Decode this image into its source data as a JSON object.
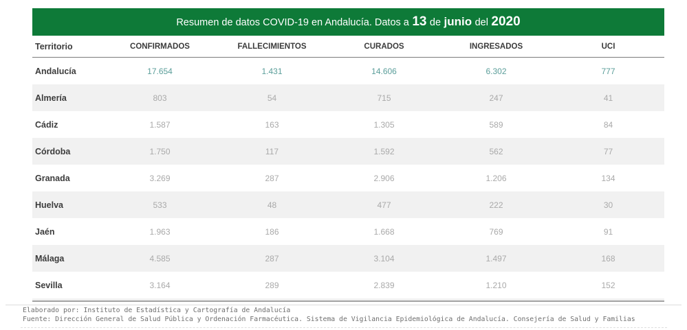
{
  "title": {
    "prefix": "Resumen de datos COVID-19 en Andalucía. Datos a",
    "day": "13",
    "de": "de",
    "month": "junio",
    "del": "del",
    "year": "2020"
  },
  "table": {
    "columns": [
      "Territorio",
      "CONFIRMADOS",
      "FALLECIMIENTOS",
      "CURADOS",
      "INGRESADOS",
      "UCI"
    ],
    "rows": [
      {
        "territorio": "Andalucía",
        "confirmados": "17.654",
        "fallecimientos": "1.431",
        "curados": "14.606",
        "ingresados": "6.302",
        "uci": "777",
        "highlight": true
      },
      {
        "territorio": "Almería",
        "confirmados": "803",
        "fallecimientos": "54",
        "curados": "715",
        "ingresados": "247",
        "uci": "41",
        "highlight": false
      },
      {
        "territorio": "Cádiz",
        "confirmados": "1.587",
        "fallecimientos": "163",
        "curados": "1.305",
        "ingresados": "589",
        "uci": "84",
        "highlight": false
      },
      {
        "territorio": "Córdoba",
        "confirmados": "1.750",
        "fallecimientos": "117",
        "curados": "1.592",
        "ingresados": "562",
        "uci": "77",
        "highlight": false
      },
      {
        "territorio": "Granada",
        "confirmados": "3.269",
        "fallecimientos": "287",
        "curados": "2.906",
        "ingresados": "1.206",
        "uci": "134",
        "highlight": false
      },
      {
        "territorio": "Huelva",
        "confirmados": "533",
        "fallecimientos": "48",
        "curados": "477",
        "ingresados": "222",
        "uci": "30",
        "highlight": false
      },
      {
        "territorio": "Jaén",
        "confirmados": "1.963",
        "fallecimientos": "186",
        "curados": "1.668",
        "ingresados": "769",
        "uci": "91",
        "highlight": false
      },
      {
        "territorio": "Málaga",
        "confirmados": "4.585",
        "fallecimientos": "287",
        "curados": "3.104",
        "ingresados": "1.497",
        "uci": "168",
        "highlight": false
      },
      {
        "territorio": "Sevilla",
        "confirmados": "3.164",
        "fallecimientos": "289",
        "curados": "2.839",
        "ingresados": "1.210",
        "uci": "152",
        "highlight": false
      }
    ]
  },
  "footer": {
    "line1": "Elaborado por: Instituto de Estadística y Cartografía de Andalucía",
    "line2": "Fuente: Dirección General de Salud Pública y Ordenación Farmacéutica. Sistema de Vigilancia Epidemiológica de Andalucía. Consejería de Salud y Familias"
  },
  "colors": {
    "header_green": "#0e7a38",
    "accent_teal": "#5b9e9a",
    "muted_number_gray": "#a9a9a9",
    "zebra_row_gray": "#f1f1f1",
    "text_dark": "#3c3c3c"
  },
  "chart_data": {
    "type": "table",
    "title": "Resumen de datos COVID-19 en Andalucía. Datos a 13 de junio del 2020",
    "columns": [
      "Territorio",
      "CONFIRMADOS",
      "FALLECIMIENTOS",
      "CURADOS",
      "INGRESADOS",
      "UCI"
    ],
    "rows": [
      [
        "Andalucía",
        17654,
        1431,
        14606,
        6302,
        777
      ],
      [
        "Almería",
        803,
        54,
        715,
        247,
        41
      ],
      [
        "Cádiz",
        1587,
        163,
        1305,
        589,
        84
      ],
      [
        "Córdoba",
        1750,
        117,
        1592,
        562,
        77
      ],
      [
        "Granada",
        3269,
        287,
        2906,
        1206,
        134
      ],
      [
        "Huelva",
        533,
        48,
        477,
        222,
        30
      ],
      [
        "Jaén",
        1963,
        186,
        1668,
        769,
        91
      ],
      [
        "Málaga",
        4585,
        287,
        3104,
        1497,
        168
      ],
      [
        "Sevilla",
        3164,
        289,
        2839,
        1210,
        152
      ]
    ]
  }
}
